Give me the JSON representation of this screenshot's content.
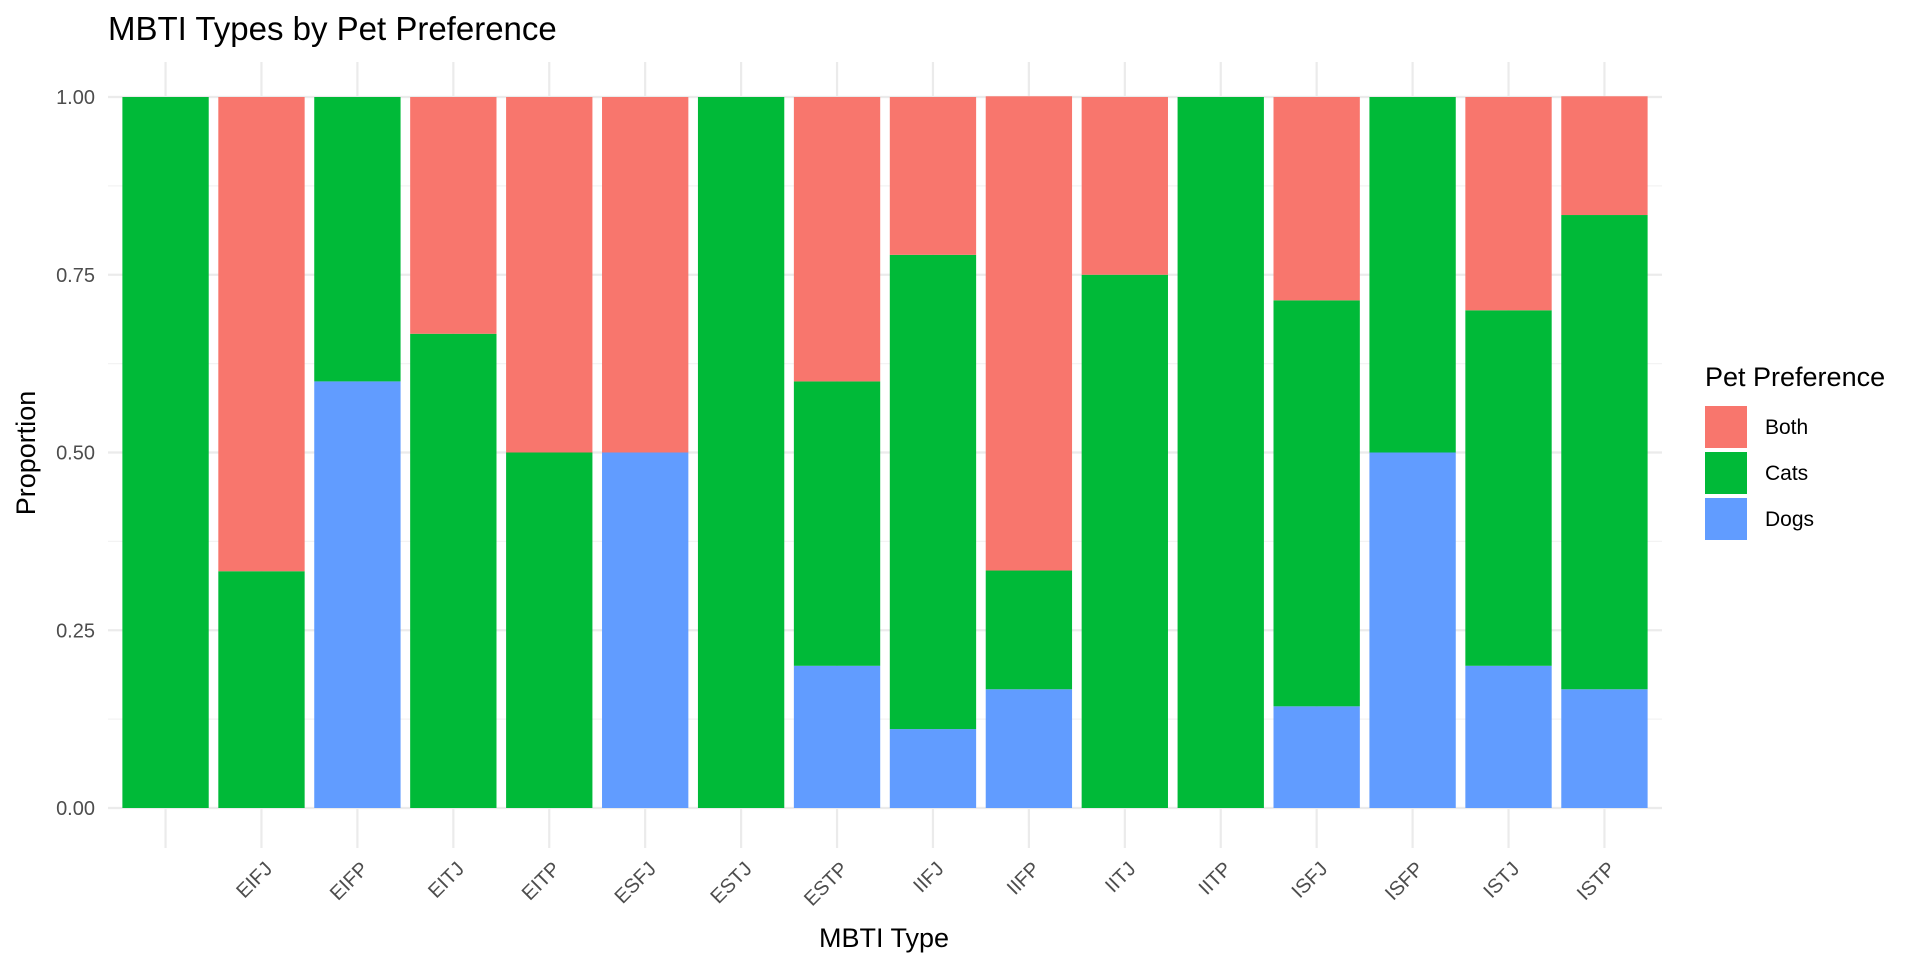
{
  "chart_data": {
    "type": "bar",
    "stacked": true,
    "title": "MBTI Types by Pet Preference",
    "xlabel": "MBTI Type",
    "ylabel": "Proportion",
    "ylim": [
      0,
      1
    ],
    "yticks": [
      0,
      0.25,
      0.5,
      0.75,
      1
    ],
    "ytick_labels": [
      "0.00",
      "0.25",
      "0.50",
      "0.75",
      "1.00"
    ],
    "categories": [
      "",
      "EIFJ",
      "EIFP",
      "EITJ",
      "EITP",
      "ESFJ",
      "ESTJ",
      "ESTP",
      "IIFJ",
      "IIFP",
      "IITJ",
      "IITP",
      "ISFJ",
      "ISFP",
      "ISTJ",
      "ISTP"
    ],
    "stack_order": [
      "Dogs",
      "Cats",
      "Both"
    ],
    "series": [
      {
        "name": "Both",
        "color": "#F8766D",
        "values": [
          0,
          0.667,
          0,
          0.333,
          0.5,
          0.5,
          0,
          0.4,
          0.222,
          0.667,
          0.25,
          0,
          0.286,
          0,
          0.3,
          0.167
        ]
      },
      {
        "name": "Cats",
        "color": "#00BA38",
        "values": [
          1,
          0.333,
          0.4,
          0.667,
          0.5,
          0,
          1,
          0.4,
          0.667,
          0.167,
          0.75,
          1,
          0.571,
          0.5,
          0.5,
          0.667
        ]
      },
      {
        "name": "Dogs",
        "color": "#619CFF",
        "values": [
          0,
          0,
          0.6,
          0,
          0,
          0.5,
          0,
          0.2,
          0.111,
          0.167,
          0,
          0,
          0.143,
          0.5,
          0.2,
          0.167
        ]
      }
    ],
    "legend": {
      "title": "Pet Preference",
      "entries": [
        "Both",
        "Cats",
        "Dogs"
      ],
      "position": "right"
    },
    "grid": true
  }
}
